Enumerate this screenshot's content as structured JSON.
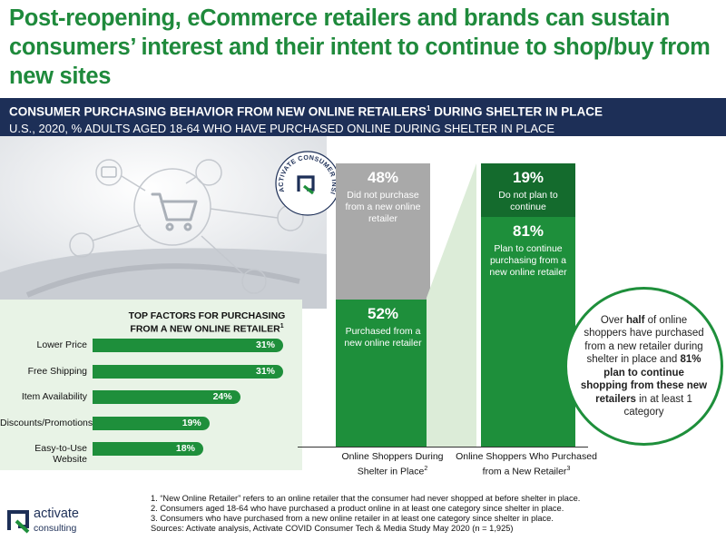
{
  "headline": "Post-reopening, eCommerce retailers and brands can sustain consumers’ interest and their intent to continue to shop/buy from new sites",
  "subheader": {
    "title": "CONSUMER PURCHASING BEHAVIOR FROM NEW ONLINE RETAILERS",
    "title_sup": "1",
    "title_tail": " DURING SHELTER IN PLACE",
    "subtitle": "U.S., 2020, % ADULTS AGED 18-64 WHO HAVE PURCHASED ONLINE DURING SHELTER IN PLACE"
  },
  "badge_text": "ACTIVATE CONSUMER INSIGHT",
  "colors": {
    "brand_green": "#1e8f3b",
    "navy": "#1d2f57",
    "gray_segment": "#a9a9a9",
    "dark_green_segment": "#146b2d",
    "panel_green": "#e8f3e6"
  },
  "chart_data": [
    {
      "type": "bar",
      "orientation": "horizontal",
      "title": "TOP FACTORS FOR PURCHASING FROM A NEW ONLINE RETAILER",
      "title_line1": "TOP FACTORS FOR PURCHASING",
      "title_line2": "FROM A NEW ONLINE RETAILER",
      "title_sup": "1",
      "categories": [
        "Lower Price",
        "Free Shipping",
        "Item Availability",
        "Discounts/Promotions",
        "Easy-to-Use Website"
      ],
      "values": [
        31,
        31,
        24,
        19,
        18
      ],
      "value_labels": [
        "31%",
        "31%",
        "24%",
        "19%",
        "18%"
      ],
      "unit": "%",
      "xlim": [
        0,
        34
      ]
    },
    {
      "type": "bar",
      "orientation": "vertical",
      "stacked": true,
      "ylim": [
        0,
        100
      ],
      "bars": [
        {
          "label": "Online Shoppers During Shelter in Place",
          "label_line1": "Online Shoppers During",
          "label_line2": "Shelter in Place",
          "label_sup": "2",
          "segments": [
            {
              "value": 52,
              "pct": "52%",
              "desc": "Purchased from a new online retailer",
              "desc_lines": [
                "Purchased from a",
                "new online retailer"
              ],
              "color": "#1e8f3b"
            },
            {
              "value": 48,
              "pct": "48%",
              "desc": "Did not purchase from a new online retailer",
              "desc_lines": [
                "Did not purchase",
                "from a new online",
                "retailer"
              ],
              "color": "#a9a9a9"
            }
          ]
        },
        {
          "label": "Online Shoppers Who Purchased from a New Retailer",
          "label_line1": "Online Shoppers Who Purchased",
          "label_line2": "from a New Retailer",
          "label_sup": "3",
          "segments": [
            {
              "value": 81,
              "pct": "81%",
              "desc": "Plan to continue purchasing from a new online retailer",
              "desc_lines": [
                "Plan to continue",
                "purchasing from a",
                "new online retailer"
              ],
              "color": "#1e8f3b"
            },
            {
              "value": 19,
              "pct": "19%",
              "desc": "Do not plan to continue",
              "desc_lines": [
                "Do not plan to",
                "continue"
              ],
              "color": "#146b2d"
            }
          ]
        }
      ]
    }
  ],
  "callout": {
    "t1": "Over ",
    "b1": "half",
    "t2": " of online shoppers have purchased from a new retailer during shelter in place and ",
    "b2": "81% plan to continue shopping from these new retailers",
    "t3": " in at least 1 category"
  },
  "footnotes": [
    "1.  “New Online Retailer” refers to an online retailer that the consumer had never shopped at before shelter in place.",
    "2.  Consumers aged 18-64 who have purchased a product online in at least one category since shelter in place.",
    "3.  Consumers who have purchased from a new online retailer in at least one category since shelter in place.",
    "Sources: Activate analysis, Activate COVID Consumer Tech & Media Study May 2020 (n = 1,925)"
  ],
  "logo": {
    "word": "activate",
    "sub": "consulting"
  }
}
